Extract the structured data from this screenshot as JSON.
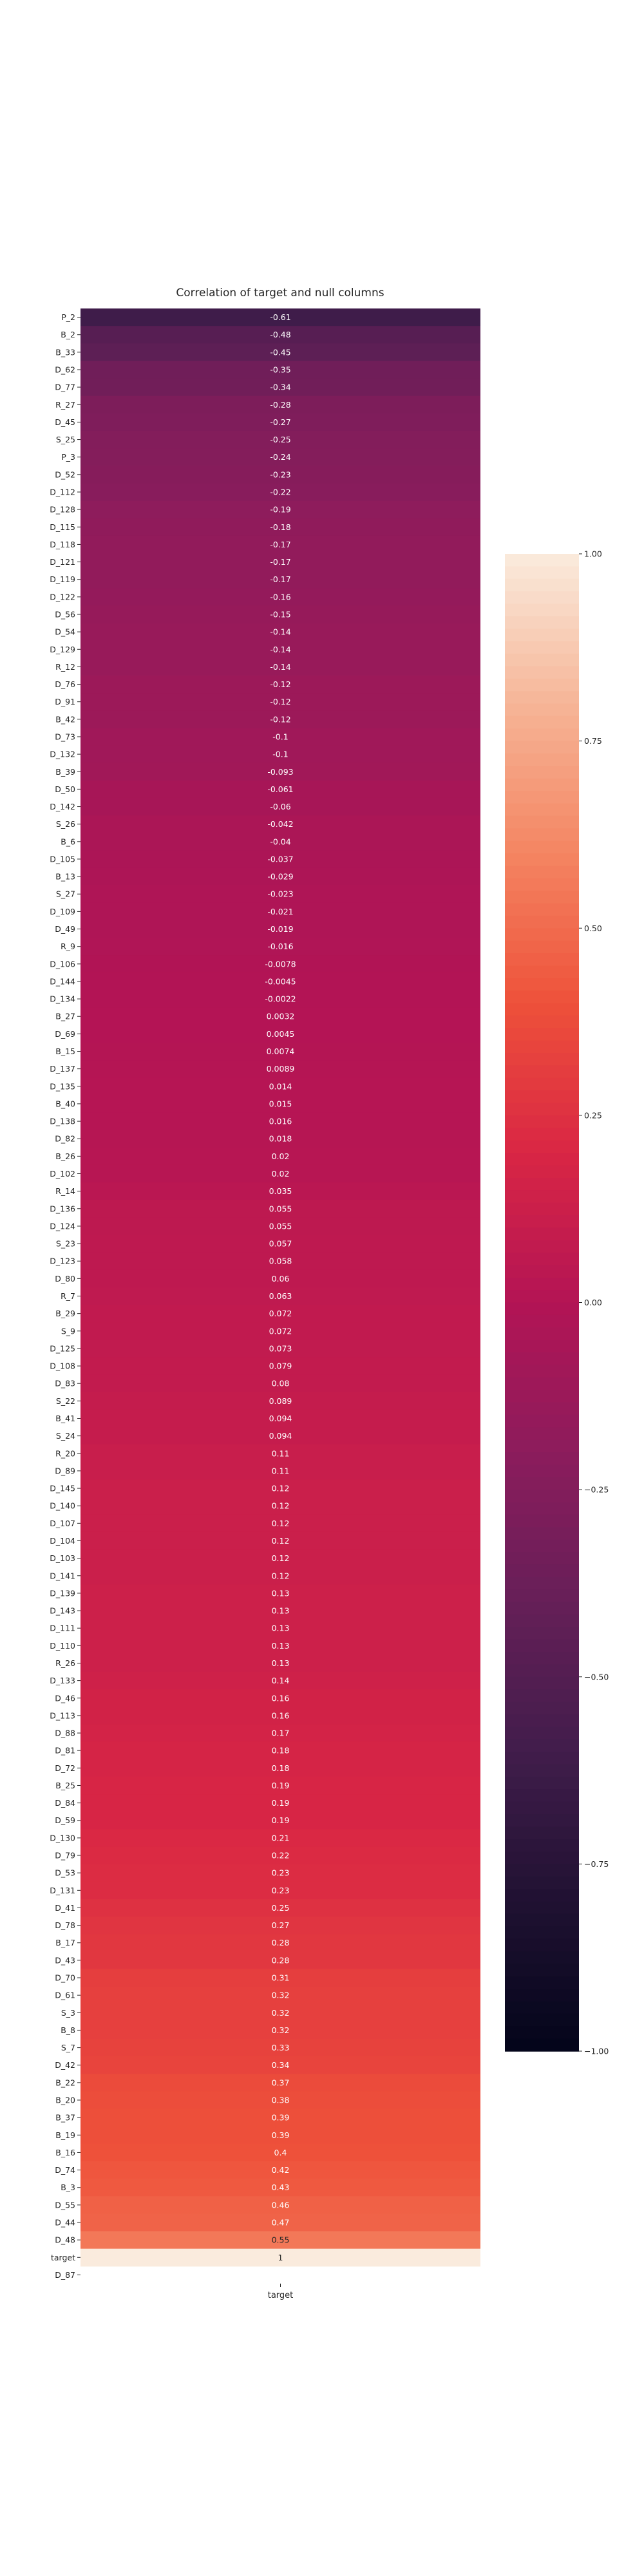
{
  "chart_data": {
    "type": "heatmap",
    "title": "Correlation of target and null columns",
    "xlabel": "",
    "ylabel": "",
    "x_tick_labels": [
      "target"
    ],
    "vmin": -1.0,
    "vmax": 1.0,
    "colormap": "rocket",
    "colorbar": {
      "ticks": [
        1.0,
        0.75,
        0.5,
        0.25,
        0.0,
        -0.25,
        -0.5,
        -0.75,
        -1.0
      ],
      "tick_labels": [
        "1.00",
        "0.75",
        "0.50",
        "0.25",
        "0.00",
        "−0.25",
        "−0.50",
        "−0.75",
        "−1.00"
      ],
      "placement": "right"
    },
    "rows": [
      {
        "label": "P_2",
        "value": -0.61,
        "text": "-0.61"
      },
      {
        "label": "B_2",
        "value": -0.48,
        "text": "-0.48"
      },
      {
        "label": "B_33",
        "value": -0.45,
        "text": "-0.45"
      },
      {
        "label": "D_62",
        "value": -0.35,
        "text": "-0.35"
      },
      {
        "label": "D_77",
        "value": -0.34,
        "text": "-0.34"
      },
      {
        "label": "R_27",
        "value": -0.28,
        "text": "-0.28"
      },
      {
        "label": "D_45",
        "value": -0.27,
        "text": "-0.27"
      },
      {
        "label": "S_25",
        "value": -0.25,
        "text": "-0.25"
      },
      {
        "label": "P_3",
        "value": -0.24,
        "text": "-0.24"
      },
      {
        "label": "D_52",
        "value": -0.23,
        "text": "-0.23"
      },
      {
        "label": "D_112",
        "value": -0.22,
        "text": "-0.22"
      },
      {
        "label": "D_128",
        "value": -0.19,
        "text": "-0.19"
      },
      {
        "label": "D_115",
        "value": -0.18,
        "text": "-0.18"
      },
      {
        "label": "D_118",
        "value": -0.17,
        "text": "-0.17"
      },
      {
        "label": "D_121",
        "value": -0.17,
        "text": "-0.17"
      },
      {
        "label": "D_119",
        "value": -0.17,
        "text": "-0.17"
      },
      {
        "label": "D_122",
        "value": -0.16,
        "text": "-0.16"
      },
      {
        "label": "D_56",
        "value": -0.15,
        "text": "-0.15"
      },
      {
        "label": "D_54",
        "value": -0.14,
        "text": "-0.14"
      },
      {
        "label": "D_129",
        "value": -0.14,
        "text": "-0.14"
      },
      {
        "label": "R_12",
        "value": -0.14,
        "text": "-0.14"
      },
      {
        "label": "D_76",
        "value": -0.12,
        "text": "-0.12"
      },
      {
        "label": "D_91",
        "value": -0.12,
        "text": "-0.12"
      },
      {
        "label": "B_42",
        "value": -0.12,
        "text": "-0.12"
      },
      {
        "label": "D_73",
        "value": -0.1,
        "text": "-0.1"
      },
      {
        "label": "D_132",
        "value": -0.1,
        "text": "-0.1"
      },
      {
        "label": "B_39",
        "value": -0.093,
        "text": "-0.093"
      },
      {
        "label": "D_50",
        "value": -0.061,
        "text": "-0.061"
      },
      {
        "label": "D_142",
        "value": -0.06,
        "text": "-0.06"
      },
      {
        "label": "S_26",
        "value": -0.042,
        "text": "-0.042"
      },
      {
        "label": "B_6",
        "value": -0.04,
        "text": "-0.04"
      },
      {
        "label": "D_105",
        "value": -0.037,
        "text": "-0.037"
      },
      {
        "label": "B_13",
        "value": -0.029,
        "text": "-0.029"
      },
      {
        "label": "S_27",
        "value": -0.023,
        "text": "-0.023"
      },
      {
        "label": "D_109",
        "value": -0.021,
        "text": "-0.021"
      },
      {
        "label": "D_49",
        "value": -0.019,
        "text": "-0.019"
      },
      {
        "label": "R_9",
        "value": -0.016,
        "text": "-0.016"
      },
      {
        "label": "D_106",
        "value": -0.0078,
        "text": "-0.0078"
      },
      {
        "label": "D_144",
        "value": -0.0045,
        "text": "-0.0045"
      },
      {
        "label": "D_134",
        "value": -0.0022,
        "text": "-0.0022"
      },
      {
        "label": "B_27",
        "value": 0.0032,
        "text": "0.0032"
      },
      {
        "label": "D_69",
        "value": 0.0045,
        "text": "0.0045"
      },
      {
        "label": "B_15",
        "value": 0.0074,
        "text": "0.0074"
      },
      {
        "label": "D_137",
        "value": 0.0089,
        "text": "0.0089"
      },
      {
        "label": "D_135",
        "value": 0.014,
        "text": "0.014"
      },
      {
        "label": "B_40",
        "value": 0.015,
        "text": "0.015"
      },
      {
        "label": "D_138",
        "value": 0.016,
        "text": "0.016"
      },
      {
        "label": "D_82",
        "value": 0.018,
        "text": "0.018"
      },
      {
        "label": "B_26",
        "value": 0.02,
        "text": "0.02"
      },
      {
        "label": "D_102",
        "value": 0.02,
        "text": "0.02"
      },
      {
        "label": "R_14",
        "value": 0.035,
        "text": "0.035"
      },
      {
        "label": "D_136",
        "value": 0.055,
        "text": "0.055"
      },
      {
        "label": "D_124",
        "value": 0.055,
        "text": "0.055"
      },
      {
        "label": "S_23",
        "value": 0.057,
        "text": "0.057"
      },
      {
        "label": "D_123",
        "value": 0.058,
        "text": "0.058"
      },
      {
        "label": "D_80",
        "value": 0.06,
        "text": "0.06"
      },
      {
        "label": "R_7",
        "value": 0.063,
        "text": "0.063"
      },
      {
        "label": "B_29",
        "value": 0.072,
        "text": "0.072"
      },
      {
        "label": "S_9",
        "value": 0.072,
        "text": "0.072"
      },
      {
        "label": "D_125",
        "value": 0.073,
        "text": "0.073"
      },
      {
        "label": "D_108",
        "value": 0.079,
        "text": "0.079"
      },
      {
        "label": "D_83",
        "value": 0.08,
        "text": "0.08"
      },
      {
        "label": "S_22",
        "value": 0.089,
        "text": "0.089"
      },
      {
        "label": "B_41",
        "value": 0.094,
        "text": "0.094"
      },
      {
        "label": "S_24",
        "value": 0.094,
        "text": "0.094"
      },
      {
        "label": "R_20",
        "value": 0.11,
        "text": "0.11"
      },
      {
        "label": "D_89",
        "value": 0.11,
        "text": "0.11"
      },
      {
        "label": "D_145",
        "value": 0.12,
        "text": "0.12"
      },
      {
        "label": "D_140",
        "value": 0.12,
        "text": "0.12"
      },
      {
        "label": "D_107",
        "value": 0.12,
        "text": "0.12"
      },
      {
        "label": "D_104",
        "value": 0.12,
        "text": "0.12"
      },
      {
        "label": "D_103",
        "value": 0.12,
        "text": "0.12"
      },
      {
        "label": "D_141",
        "value": 0.12,
        "text": "0.12"
      },
      {
        "label": "D_139",
        "value": 0.13,
        "text": "0.13"
      },
      {
        "label": "D_143",
        "value": 0.13,
        "text": "0.13"
      },
      {
        "label": "D_111",
        "value": 0.13,
        "text": "0.13"
      },
      {
        "label": "D_110",
        "value": 0.13,
        "text": "0.13"
      },
      {
        "label": "R_26",
        "value": 0.13,
        "text": "0.13"
      },
      {
        "label": "D_133",
        "value": 0.14,
        "text": "0.14"
      },
      {
        "label": "D_46",
        "value": 0.16,
        "text": "0.16"
      },
      {
        "label": "D_113",
        "value": 0.16,
        "text": "0.16"
      },
      {
        "label": "D_88",
        "value": 0.17,
        "text": "0.17"
      },
      {
        "label": "D_81",
        "value": 0.18,
        "text": "0.18"
      },
      {
        "label": "D_72",
        "value": 0.18,
        "text": "0.18"
      },
      {
        "label": "B_25",
        "value": 0.19,
        "text": "0.19"
      },
      {
        "label": "D_84",
        "value": 0.19,
        "text": "0.19"
      },
      {
        "label": "D_59",
        "value": 0.19,
        "text": "0.19"
      },
      {
        "label": "D_130",
        "value": 0.21,
        "text": "0.21"
      },
      {
        "label": "D_79",
        "value": 0.22,
        "text": "0.22"
      },
      {
        "label": "D_53",
        "value": 0.23,
        "text": "0.23"
      },
      {
        "label": "D_131",
        "value": 0.23,
        "text": "0.23"
      },
      {
        "label": "D_41",
        "value": 0.25,
        "text": "0.25"
      },
      {
        "label": "D_78",
        "value": 0.27,
        "text": "0.27"
      },
      {
        "label": "B_17",
        "value": 0.28,
        "text": "0.28"
      },
      {
        "label": "D_43",
        "value": 0.28,
        "text": "0.28"
      },
      {
        "label": "D_70",
        "value": 0.31,
        "text": "0.31"
      },
      {
        "label": "D_61",
        "value": 0.32,
        "text": "0.32"
      },
      {
        "label": "S_3",
        "value": 0.32,
        "text": "0.32"
      },
      {
        "label": "B_8",
        "value": 0.32,
        "text": "0.32"
      },
      {
        "label": "S_7",
        "value": 0.33,
        "text": "0.33"
      },
      {
        "label": "D_42",
        "value": 0.34,
        "text": "0.34"
      },
      {
        "label": "B_22",
        "value": 0.37,
        "text": "0.37"
      },
      {
        "label": "B_20",
        "value": 0.38,
        "text": "0.38"
      },
      {
        "label": "B_37",
        "value": 0.39,
        "text": "0.39"
      },
      {
        "label": "B_19",
        "value": 0.39,
        "text": "0.39"
      },
      {
        "label": "B_16",
        "value": 0.4,
        "text": "0.4"
      },
      {
        "label": "D_74",
        "value": 0.42,
        "text": "0.42"
      },
      {
        "label": "B_3",
        "value": 0.43,
        "text": "0.43"
      },
      {
        "label": "D_55",
        "value": 0.46,
        "text": "0.46"
      },
      {
        "label": "D_44",
        "value": 0.47,
        "text": "0.47"
      },
      {
        "label": "D_48",
        "value": 0.55,
        "text": "0.55"
      },
      {
        "label": "target",
        "value": 1.0,
        "text": "1"
      },
      {
        "label": "D_87",
        "value": null,
        "text": ""
      }
    ]
  }
}
